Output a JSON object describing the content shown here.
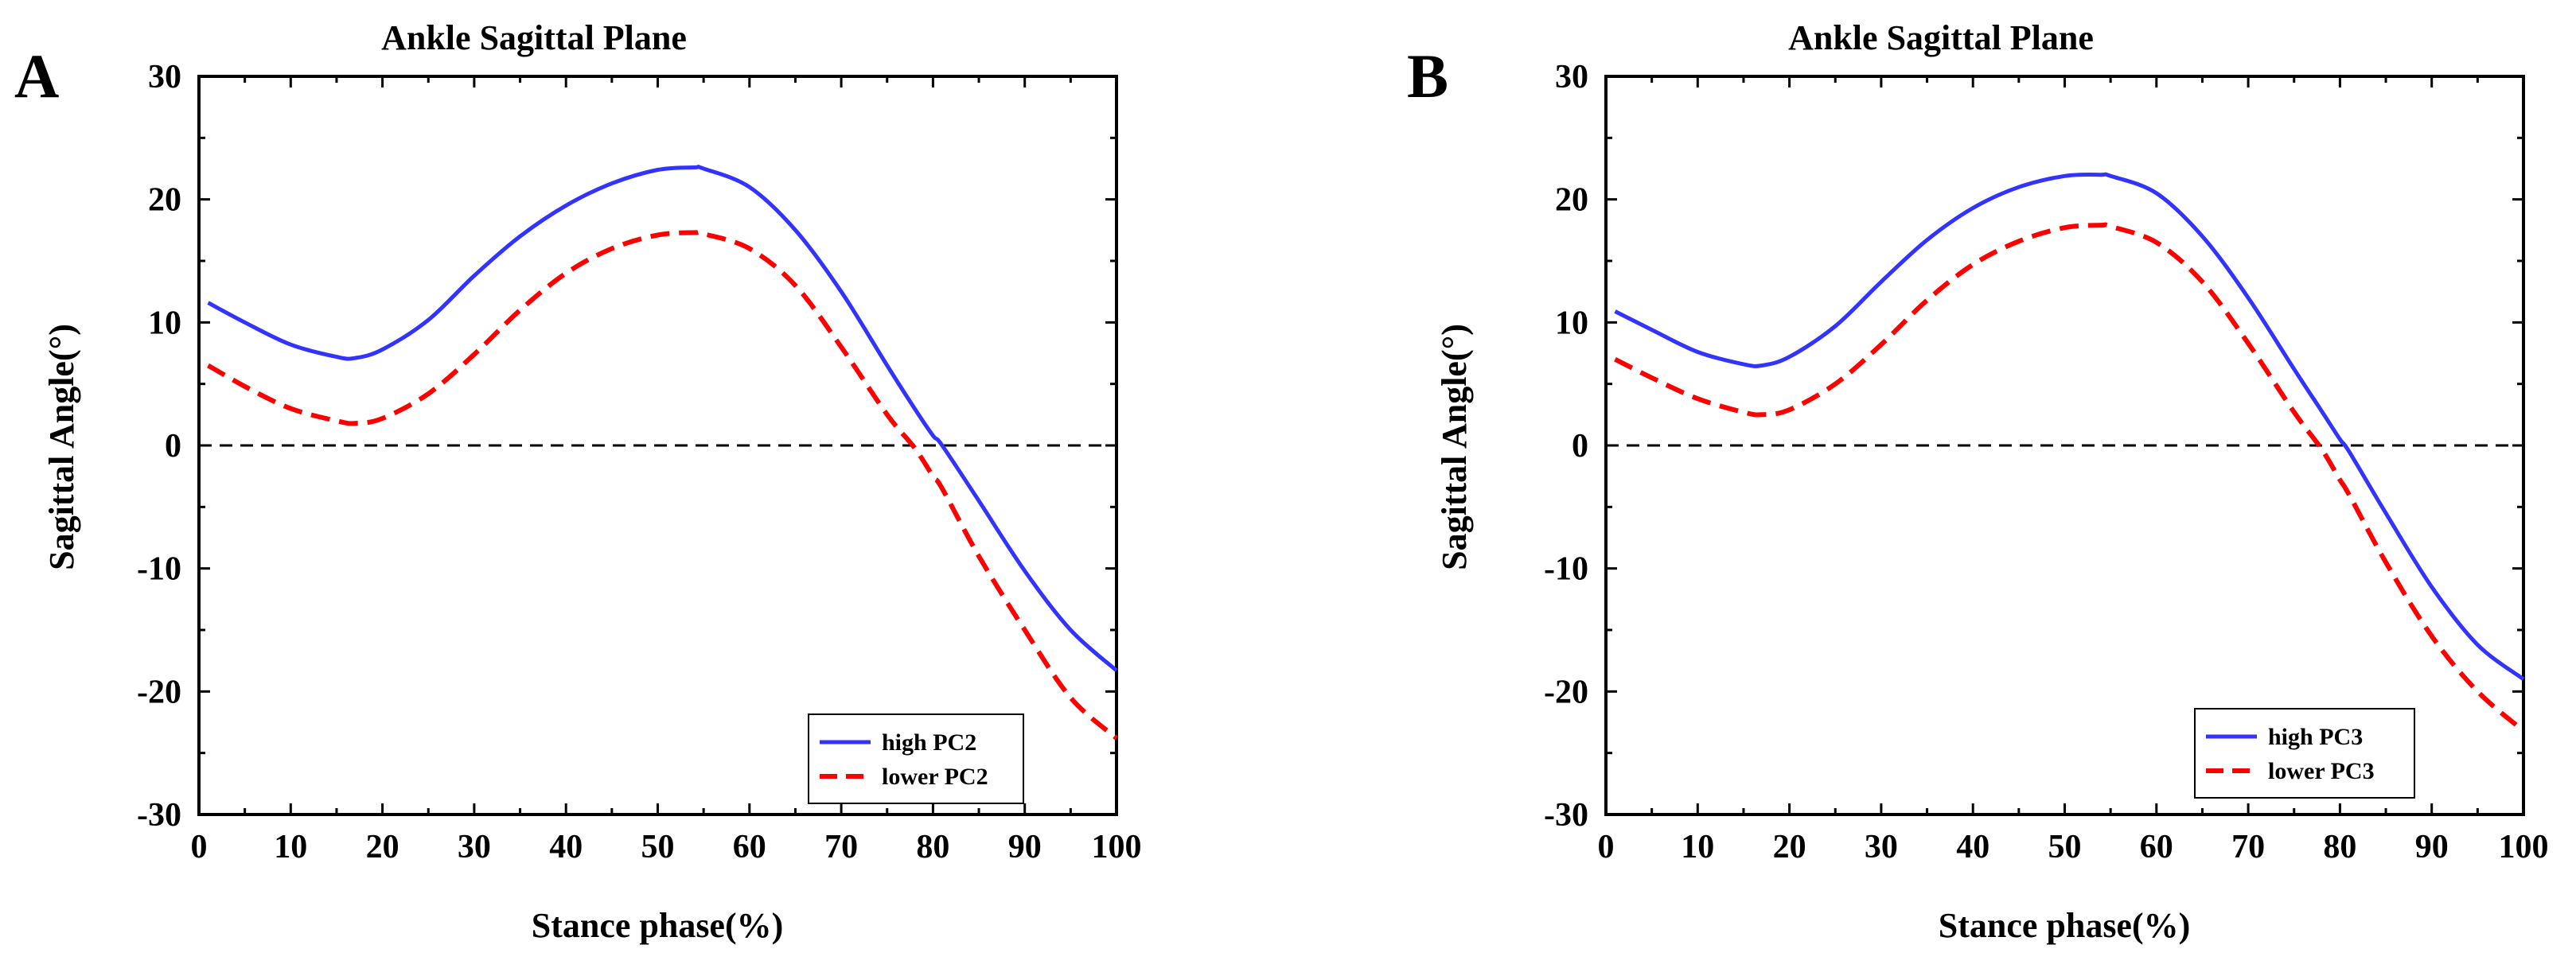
{
  "chart_data": [
    {
      "panel": "A",
      "type": "line",
      "title": "Ankle Sagittal Plane",
      "xlabel": "Stance phase(%)",
      "ylabel": "Sagittal Angle(°)",
      "xlim": [
        0,
        100
      ],
      "ylim": [
        -30,
        30
      ],
      "xticks": [
        0,
        10,
        20,
        30,
        40,
        50,
        60,
        70,
        80,
        90,
        100
      ],
      "yticks": [
        -30,
        -20,
        -10,
        0,
        10,
        20,
        30
      ],
      "x": [
        1,
        5,
        10,
        15,
        17,
        20,
        25,
        30,
        35,
        40,
        45,
        50,
        54,
        55,
        60,
        65,
        70,
        75,
        78,
        80,
        81,
        85,
        90,
        95,
        100
      ],
      "series": [
        {
          "name": "high PC2",
          "color": "#3333ff",
          "style": "solid",
          "values": [
            11.6,
            10.0,
            8.2,
            7.2,
            7.1,
            7.8,
            10.2,
            13.8,
            17.0,
            19.5,
            21.3,
            22.4,
            22.6,
            22.5,
            21.0,
            17.5,
            12.5,
            6.5,
            3.0,
            0.8,
            0.0,
            -4.5,
            -10.2,
            -15.0,
            -18.3
          ]
        },
        {
          "name": "lower PC2",
          "color": "#ff0000",
          "style": "dashed",
          "values": [
            6.5,
            4.8,
            3.0,
            2.0,
            1.8,
            2.2,
            4.2,
            7.4,
            11.0,
            14.0,
            16.0,
            17.1,
            17.3,
            17.2,
            16.0,
            13.0,
            8.0,
            2.5,
            -0.2,
            -2.5,
            -3.5,
            -9.0,
            -15.0,
            -20.5,
            -23.8
          ]
        }
      ],
      "reference_line": {
        "y": 0,
        "color": "#000000",
        "style": "dashed"
      },
      "legend": "bottom-right"
    },
    {
      "panel": "B",
      "type": "line",
      "title": "Ankle Sagittal Plane",
      "xlabel": "Stance phase(%)",
      "ylabel": "Sagittal Angle(°)",
      "xlim": [
        0,
        100
      ],
      "ylim": [
        -30,
        30
      ],
      "xticks": [
        0,
        10,
        20,
        30,
        40,
        50,
        60,
        70,
        80,
        90,
        100
      ],
      "yticks": [
        -30,
        -20,
        -10,
        0,
        10,
        20,
        30
      ],
      "x": [
        1,
        5,
        10,
        15,
        17,
        20,
        25,
        30,
        35,
        40,
        45,
        50,
        54,
        55,
        60,
        65,
        70,
        75,
        78,
        80,
        81,
        85,
        90,
        95,
        100
      ],
      "series": [
        {
          "name": "high PC3",
          "color": "#3333ff",
          "style": "solid",
          "values": [
            10.9,
            9.4,
            7.6,
            6.6,
            6.5,
            7.2,
            9.7,
            13.3,
            16.7,
            19.3,
            21.0,
            21.9,
            22.0,
            21.9,
            20.5,
            17.0,
            12.0,
            6.2,
            2.8,
            0.5,
            -0.5,
            -5.5,
            -11.5,
            -16.2,
            -19.0
          ]
        },
        {
          "name": "lower PC3",
          "color": "#ff0000",
          "style": "dashed",
          "values": [
            7.0,
            5.5,
            3.8,
            2.7,
            2.5,
            2.9,
            5.0,
            8.2,
            11.8,
            14.7,
            16.6,
            17.7,
            17.9,
            17.8,
            16.5,
            13.3,
            8.3,
            2.7,
            -0.3,
            -2.8,
            -4.0,
            -9.5,
            -15.5,
            -20.0,
            -23.2
          ]
        }
      ],
      "reference_line": {
        "y": 0,
        "color": "#000000",
        "style": "dashed"
      },
      "legend": "bottom-right"
    }
  ]
}
